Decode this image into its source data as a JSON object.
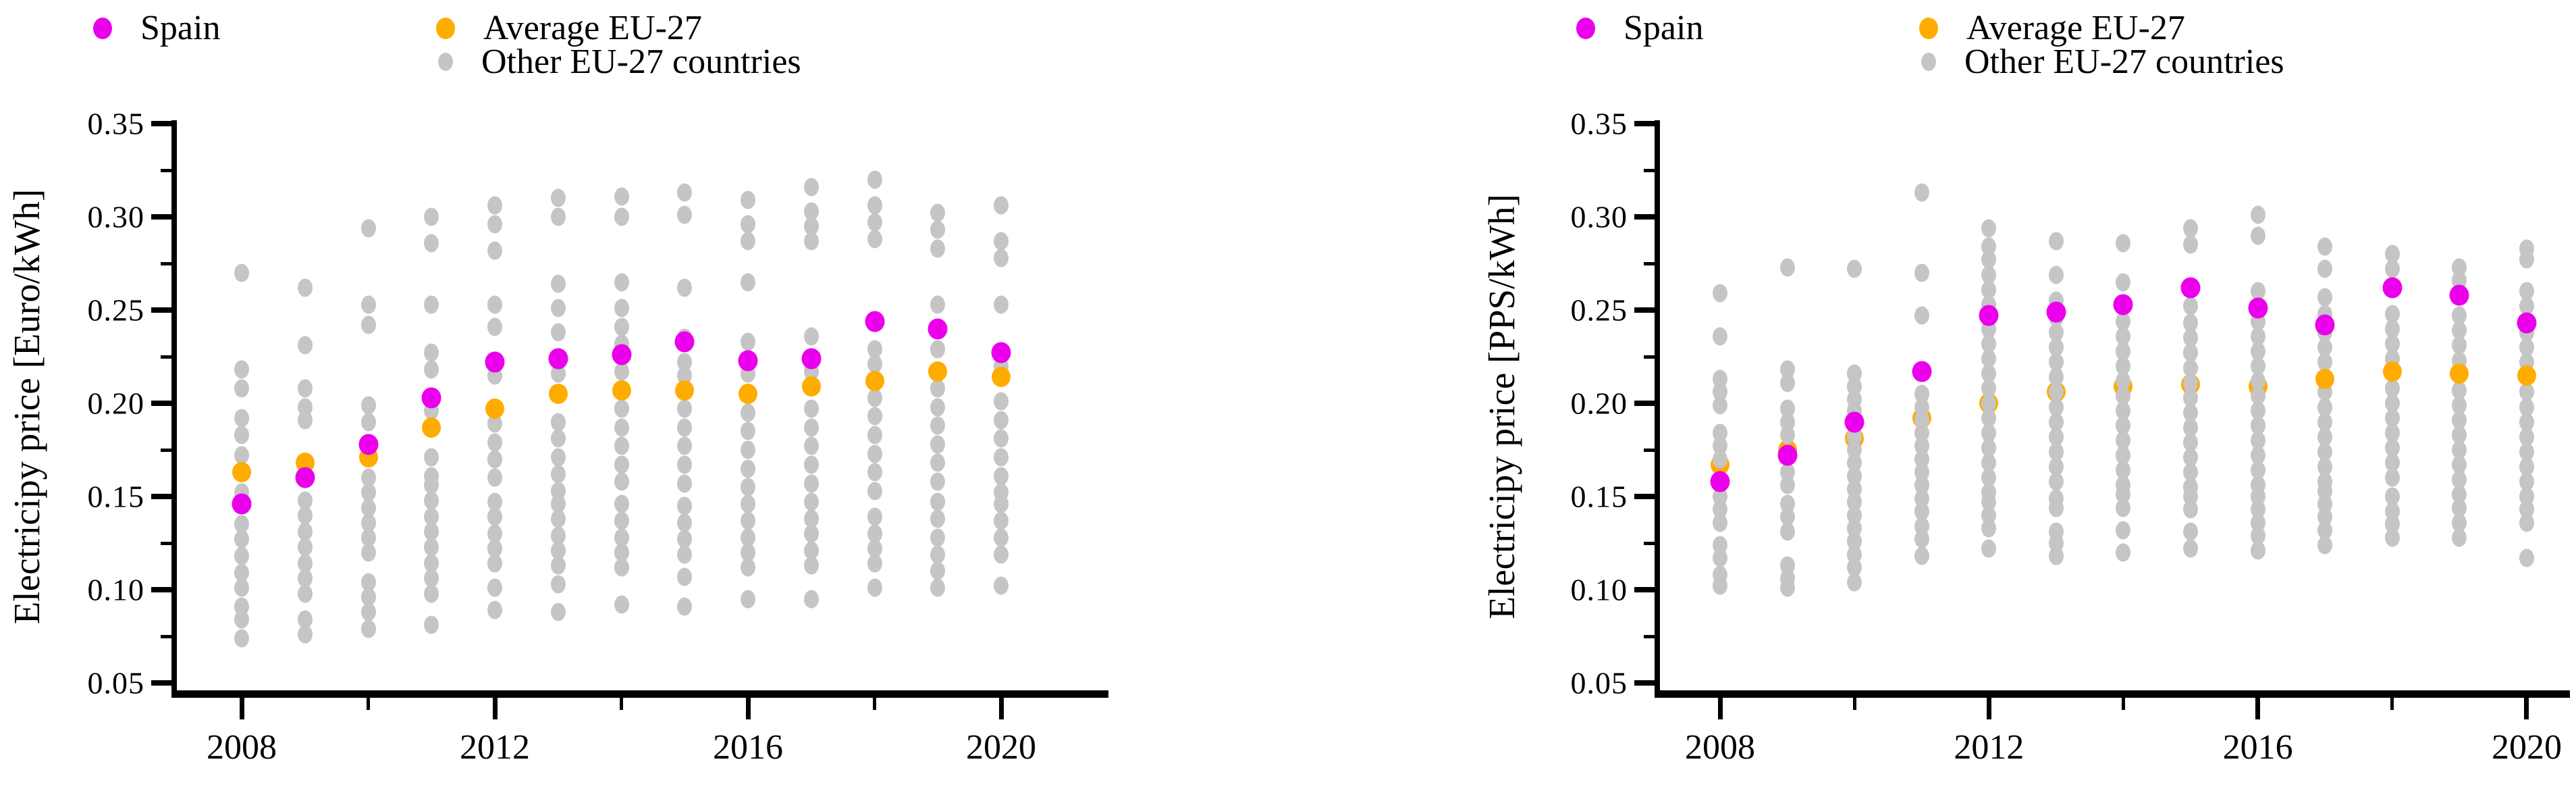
{
  "chart_data": [
    {
      "type": "scatter",
      "id": "euro-per-kwh",
      "ylabel": "Electricipy price [Euro/kWh]",
      "xlabel": "",
      "legend": {
        "spain": "Spain",
        "avg": "Average EU-27",
        "other": "Other EU-27 countries"
      },
      "colors": {
        "spain": "#EA00EA",
        "avg": "#FFAC00",
        "other": "#C5C5C5"
      },
      "x": [
        2008,
        2009,
        2010,
        2011,
        2012,
        2013,
        2014,
        2015,
        2016,
        2017,
        2018,
        2019,
        2020
      ],
      "xticks_major": [
        2008,
        2012,
        2016,
        2020
      ],
      "xticks_minor": [
        2010,
        2014,
        2018
      ],
      "ylim": [
        0.05,
        0.35
      ],
      "ytick_step": 0.05,
      "ytick_minor_step": 0.025,
      "grid": false,
      "legend_position": "top",
      "avg_behind_gray_years": [],
      "series": [
        {
          "name": "Spain",
          "values": [
            0.146,
            0.16,
            0.178,
            0.203,
            0.222,
            0.224,
            0.226,
            0.233,
            0.223,
            0.224,
            0.244,
            0.24,
            0.227
          ]
        },
        {
          "name": "Average EU-27",
          "values": [
            0.163,
            0.168,
            0.171,
            0.187,
            0.197,
            0.205,
            0.207,
            0.207,
            0.205,
            0.209,
            0.212,
            0.217,
            0.214
          ]
        },
        {
          "name": "Other EU-27 countries",
          "points": [
            [
              0.27,
              0.218,
              0.208,
              0.192,
              0.183,
              0.172,
              0.152,
              0.135,
              0.127,
              0.118,
              0.109,
              0.101,
              0.091,
              0.084,
              0.074
            ],
            [
              0.262,
              0.231,
              0.208,
              0.198,
              0.191,
              0.148,
              0.14,
              0.131,
              0.123,
              0.114,
              0.106,
              0.098,
              0.084,
              0.076
            ],
            [
              0.294,
              0.253,
              0.242,
              0.199,
              0.19,
              0.16,
              0.152,
              0.144,
              0.136,
              0.128,
              0.12,
              0.104,
              0.096,
              0.088,
              0.079
            ],
            [
              0.3,
              0.286,
              0.253,
              0.227,
              0.218,
              0.196,
              0.171,
              0.161,
              0.156,
              0.148,
              0.139,
              0.131,
              0.123,
              0.114,
              0.106,
              0.098,
              0.081
            ],
            [
              0.306,
              0.296,
              0.282,
              0.253,
              0.241,
              0.215,
              0.189,
              0.179,
              0.17,
              0.16,
              0.147,
              0.139,
              0.13,
              0.122,
              0.114,
              0.101,
              0.089
            ],
            [
              0.31,
              0.3,
              0.264,
              0.251,
              0.238,
              0.216,
              0.19,
              0.181,
              0.171,
              0.162,
              0.153,
              0.146,
              0.138,
              0.129,
              0.121,
              0.113,
              0.103,
              0.088
            ],
            [
              0.311,
              0.3,
              0.265,
              0.251,
              0.241,
              0.232,
              0.217,
              0.197,
              0.187,
              0.177,
              0.167,
              0.158,
              0.146,
              0.137,
              0.128,
              0.12,
              0.112,
              0.092
            ],
            [
              0.313,
              0.301,
              0.262,
              0.235,
              0.222,
              0.215,
              0.197,
              0.187,
              0.177,
              0.167,
              0.157,
              0.145,
              0.136,
              0.127,
              0.119,
              0.107,
              0.091
            ],
            [
              0.309,
              0.296,
              0.287,
              0.265,
              0.233,
              0.216,
              0.195,
              0.185,
              0.175,
              0.165,
              0.155,
              0.146,
              0.137,
              0.128,
              0.12,
              0.112,
              0.095
            ],
            [
              0.316,
              0.303,
              0.295,
              0.287,
              0.236,
              0.217,
              0.197,
              0.187,
              0.177,
              0.167,
              0.157,
              0.147,
              0.138,
              0.13,
              0.121,
              0.113,
              0.095
            ],
            [
              0.32,
              0.306,
              0.297,
              0.288,
              0.229,
              0.221,
              0.203,
              0.193,
              0.183,
              0.173,
              0.163,
              0.153,
              0.139,
              0.13,
              0.122,
              0.114,
              0.101
            ],
            [
              0.302,
              0.293,
              0.283,
              0.253,
              0.229,
              0.208,
              0.198,
              0.188,
              0.178,
              0.168,
              0.158,
              0.147,
              0.138,
              0.128,
              0.119,
              0.11,
              0.101
            ],
            [
              0.306,
              0.287,
              0.278,
              0.253,
              0.22,
              0.201,
              0.191,
              0.181,
              0.171,
              0.161,
              0.152,
              0.146,
              0.137,
              0.128,
              0.119,
              0.102
            ]
          ]
        }
      ]
    },
    {
      "type": "scatter",
      "id": "pps-per-kwh",
      "ylabel": "Electricipy price [PPS/kWh]",
      "xlabel": "",
      "legend": {
        "spain": "Spain",
        "avg": "Average EU-27",
        "other": "Other EU-27 countries"
      },
      "colors": {
        "spain": "#EA00EA",
        "avg": "#FFAC00",
        "other": "#C5C5C5"
      },
      "x": [
        2008,
        2009,
        2010,
        2011,
        2012,
        2013,
        2014,
        2015,
        2016,
        2017,
        2018,
        2019,
        2020
      ],
      "xticks_major": [
        2008,
        2012,
        2016,
        2020
      ],
      "xticks_minor": [
        2010,
        2014,
        2018
      ],
      "ylim": [
        0.05,
        0.35
      ],
      "ytick_step": 0.05,
      "ytick_minor_step": 0.025,
      "grid": false,
      "legend_position": "top",
      "avg_behind_gray_years": [
        2008,
        2009,
        2010,
        2011,
        2012,
        2013,
        2014,
        2015,
        2016
      ],
      "series": [
        {
          "name": "Spain",
          "values": [
            0.158,
            0.172,
            0.19,
            0.217,
            0.247,
            0.249,
            0.253,
            0.262,
            0.251,
            0.242,
            0.262,
            0.258,
            0.243
          ]
        },
        {
          "name": "Average EU-27",
          "values": [
            0.167,
            0.175,
            0.181,
            0.192,
            0.2,
            0.206,
            0.209,
            0.21,
            0.209,
            0.213,
            0.217,
            0.216,
            0.215
          ]
        },
        {
          "name": "Other EU-27 countries",
          "points": [
            [
              0.259,
              0.236,
              0.213,
              0.206,
              0.199,
              0.184,
              0.177,
              0.17,
              0.15,
              0.143,
              0.136,
              0.124,
              0.117,
              0.108,
              0.102
            ],
            [
              0.273,
              0.218,
              0.211,
              0.197,
              0.19,
              0.183,
              0.163,
              0.156,
              0.146,
              0.139,
              0.131,
              0.113,
              0.106,
              0.101
            ],
            [
              0.272,
              0.216,
              0.209,
              0.202,
              0.196,
              0.182,
              0.175,
              0.168,
              0.161,
              0.154,
              0.147,
              0.14,
              0.133,
              0.126,
              0.119,
              0.112,
              0.104
            ],
            [
              0.313,
              0.27,
              0.247,
              0.205,
              0.198,
              0.191,
              0.184,
              0.177,
              0.17,
              0.163,
              0.156,
              0.149,
              0.142,
              0.134,
              0.127,
              0.118
            ],
            [
              0.294,
              0.284,
              0.277,
              0.269,
              0.261,
              0.253,
              0.24,
              0.232,
              0.224,
              0.216,
              0.208,
              0.2,
              0.192,
              0.184,
              0.176,
              0.168,
              0.16,
              0.152,
              0.147,
              0.14,
              0.133,
              0.122
            ],
            [
              0.287,
              0.269,
              0.255,
              0.246,
              0.238,
              0.23,
              0.222,
              0.214,
              0.206,
              0.198,
              0.19,
              0.182,
              0.174,
              0.166,
              0.158,
              0.149,
              0.144,
              0.131,
              0.125,
              0.118
            ],
            [
              0.286,
              0.265,
              0.244,
              0.236,
              0.228,
              0.22,
              0.212,
              0.204,
              0.196,
              0.188,
              0.18,
              0.172,
              0.164,
              0.156,
              0.151,
              0.144,
              0.132,
              0.12
            ],
            [
              0.294,
              0.285,
              0.252,
              0.243,
              0.235,
              0.227,
              0.219,
              0.211,
              0.203,
              0.195,
              0.187,
              0.179,
              0.171,
              0.163,
              0.155,
              0.15,
              0.143,
              0.131,
              0.122
            ],
            [
              0.301,
              0.29,
              0.26,
              0.244,
              0.236,
              0.228,
              0.22,
              0.212,
              0.204,
              0.196,
              0.188,
              0.18,
              0.172,
              0.164,
              0.156,
              0.15,
              0.143,
              0.136,
              0.129,
              0.121
            ],
            [
              0.284,
              0.272,
              0.257,
              0.248,
              0.238,
              0.23,
              0.222,
              0.214,
              0.206,
              0.198,
              0.19,
              0.182,
              0.174,
              0.166,
              0.158,
              0.153,
              0.146,
              0.139,
              0.132,
              0.124
            ],
            [
              0.28,
              0.272,
              0.248,
              0.24,
              0.232,
              0.224,
              0.216,
              0.208,
              0.2,
              0.192,
              0.184,
              0.176,
              0.168,
              0.16,
              0.15,
              0.142,
              0.135,
              0.128
            ],
            [
              0.273,
              0.266,
              0.247,
              0.239,
              0.231,
              0.223,
              0.215,
              0.207,
              0.199,
              0.191,
              0.183,
              0.175,
              0.167,
              0.159,
              0.151,
              0.144,
              0.136,
              0.128
            ],
            [
              0.283,
              0.277,
              0.26,
              0.252,
              0.238,
              0.23,
              0.222,
              0.214,
              0.206,
              0.198,
              0.19,
              0.182,
              0.174,
              0.166,
              0.158,
              0.15,
              0.143,
              0.136,
              0.117
            ]
          ]
        }
      ]
    }
  ]
}
